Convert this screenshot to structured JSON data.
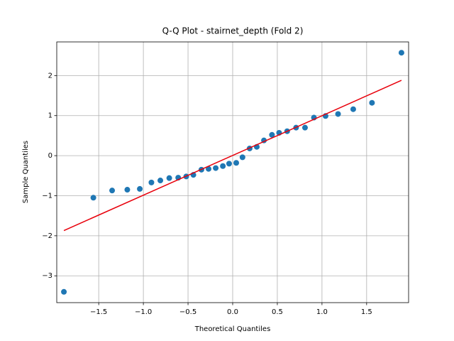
{
  "chart_data": {
    "type": "scatter",
    "title": "Q-Q Plot - stairnet_depth (Fold 2)",
    "x_label": "Theoretical Quantiles",
    "y_label": "Sample Quantiles",
    "xlim": [
      -1.97,
      1.97
    ],
    "ylim": [
      -3.67,
      2.84
    ],
    "xticks": [
      {
        "value": -1.5,
        "label": "−1.5"
      },
      {
        "value": -1.0,
        "label": "−1.0"
      },
      {
        "value": -0.5,
        "label": "−0.5"
      },
      {
        "value": 0,
        "label": "0.0"
      },
      0.5,
      {
        "value": 1.0,
        "label": "1.0"
      },
      1.5
    ],
    "yticks": [
      {
        "value": -3,
        "label": "−3"
      },
      {
        "value": -2,
        "label": "−2"
      },
      {
        "value": -1,
        "label": "−1"
      },
      0,
      1,
      2
    ],
    "grid": true,
    "series": [
      {
        "style": "points",
        "color": "#1f77b4",
        "x": [
          -1.89,
          -1.56,
          -1.35,
          -1.18,
          -1.04,
          -0.91,
          -0.81,
          -0.71,
          -0.61,
          -0.52,
          -0.44,
          -0.35,
          -0.27,
          -0.19,
          -0.11,
          -0.04,
          0.04,
          0.11,
          0.19,
          0.27,
          0.35,
          0.44,
          0.52,
          0.61,
          0.71,
          0.81,
          0.91,
          1.04,
          1.18,
          1.35,
          1.56,
          1.89
        ],
        "values": [
          -3.4,
          -1.05,
          -0.87,
          -0.85,
          -0.83,
          -0.67,
          -0.62,
          -0.56,
          -0.55,
          -0.52,
          -0.48,
          -0.35,
          -0.33,
          -0.31,
          -0.26,
          -0.2,
          -0.18,
          -0.04,
          0.18,
          0.22,
          0.38,
          0.52,
          0.57,
          0.61,
          0.7,
          0.7,
          0.95,
          0.99,
          1.04,
          1.16,
          1.32,
          2.57
        ]
      },
      {
        "style": "line",
        "color": "#e8000b",
        "x": [
          -1.89,
          1.89
        ],
        "values": [
          -1.87,
          1.88
        ]
      }
    ]
  }
}
